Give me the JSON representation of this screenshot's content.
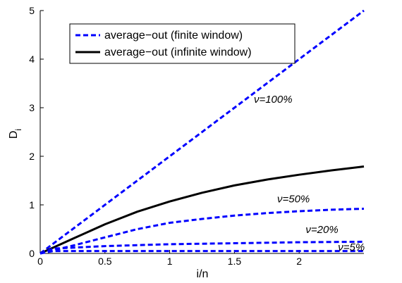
{
  "chart_data": {
    "type": "line",
    "title": "",
    "xlabel": "i/n",
    "ylabel": "D",
    "ylabel_subscript": "i",
    "xlim": [
      0,
      2.5
    ],
    "ylim": [
      0,
      5
    ],
    "xticks": [
      0,
      0.5,
      1,
      1.5,
      2
    ],
    "xtick_labels": [
      "0",
      "0.5",
      "1",
      "1.5",
      "2"
    ],
    "yticks": [
      0,
      1,
      2,
      3,
      4,
      5
    ],
    "ytick_labels": [
      "0",
      "1",
      "2",
      "3",
      "4",
      "5"
    ],
    "grid": false,
    "legend_position": "top-left",
    "legend": [
      {
        "label": "average−out (finite window)",
        "style": "dashed",
        "color": "#0000ff"
      },
      {
        "label": "average−out (infinite window)",
        "style": "solid",
        "color": "#000000"
      }
    ],
    "series": [
      {
        "legend_index": 0,
        "style": "dashed",
        "color": "#0000ff",
        "x": [
          0,
          2.5
        ],
        "y": [
          0,
          5.0
        ],
        "annotation": "ν=100%",
        "annotation_at": [
          1.65,
          3.1
        ]
      },
      {
        "legend_index": 1,
        "style": "solid",
        "color": "#000000",
        "x": [
          0,
          0.1,
          0.25,
          0.5,
          0.75,
          1.0,
          1.25,
          1.5,
          1.75,
          2.0,
          2.25,
          2.5
        ],
        "y": [
          0,
          0.12,
          0.3,
          0.6,
          0.86,
          1.07,
          1.25,
          1.4,
          1.52,
          1.62,
          1.71,
          1.79
        ],
        "annotation": "",
        "annotation_at": null
      },
      {
        "legend_index": 0,
        "style": "dashed",
        "color": "#0000ff",
        "x": [
          0,
          0.25,
          0.5,
          0.75,
          1.0,
          1.25,
          1.5,
          1.75,
          2.0,
          2.25,
          2.5
        ],
        "y": [
          0,
          0.16,
          0.33,
          0.5,
          0.63,
          0.71,
          0.78,
          0.83,
          0.87,
          0.9,
          0.92
        ],
        "annotation": "ν=50%",
        "annotation_at": [
          1.83,
          1.05
        ]
      },
      {
        "legend_index": 0,
        "style": "dashed",
        "color": "#0000ff",
        "x": [
          0,
          0.1,
          0.5,
          1.0,
          1.5,
          2.0,
          2.5
        ],
        "y": [
          0,
          0.1,
          0.15,
          0.19,
          0.21,
          0.23,
          0.24
        ],
        "annotation": "ν=20%",
        "annotation_at": [
          2.05,
          0.42
        ]
      },
      {
        "legend_index": 0,
        "style": "dashed",
        "color": "#0000ff",
        "x": [
          0,
          0.1,
          0.5,
          1.0,
          1.5,
          2.0,
          2.5
        ],
        "y": [
          0,
          0.05,
          0.05,
          0.05,
          0.05,
          0.05,
          0.05
        ],
        "annotation": "ν=5%",
        "annotation_at": [
          2.3,
          0.06
        ]
      }
    ]
  }
}
